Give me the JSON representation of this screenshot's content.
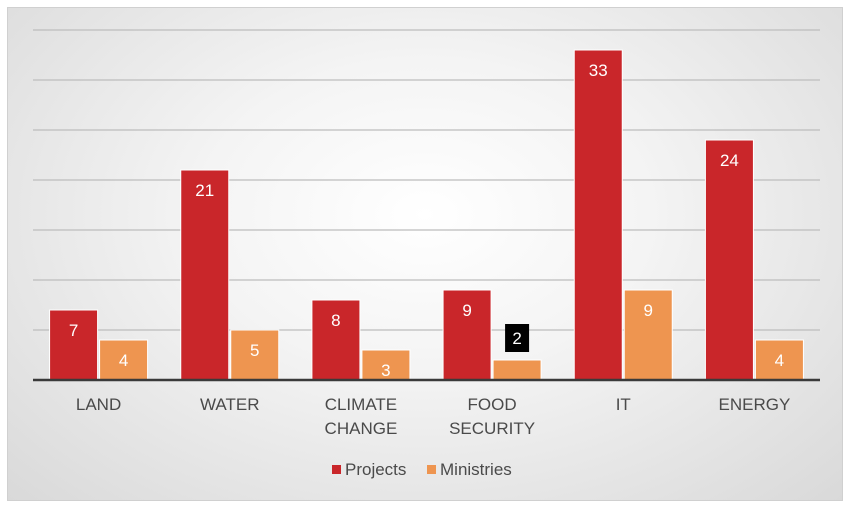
{
  "chart_data": {
    "type": "bar",
    "categories": [
      [
        "LAND"
      ],
      [
        "WATER"
      ],
      [
        "CLIMATE",
        "CHANGE"
      ],
      [
        "FOOD",
        "SECURITY"
      ],
      [
        "IT"
      ],
      [
        "ENERGY"
      ]
    ],
    "series": [
      {
        "name": "Projects",
        "values": [
          7,
          21,
          8,
          9,
          33,
          24
        ],
        "color": "#c9262a"
      },
      {
        "name": "Ministries",
        "values": [
          4,
          5,
          3,
          2,
          9,
          4
        ],
        "color": "#ee9550"
      }
    ],
    "ylim": [
      0,
      35
    ],
    "grid": true,
    "highlight": {
      "series": 1,
      "index": 3,
      "label_bg": "#000000"
    },
    "legend_position": "bottom"
  }
}
